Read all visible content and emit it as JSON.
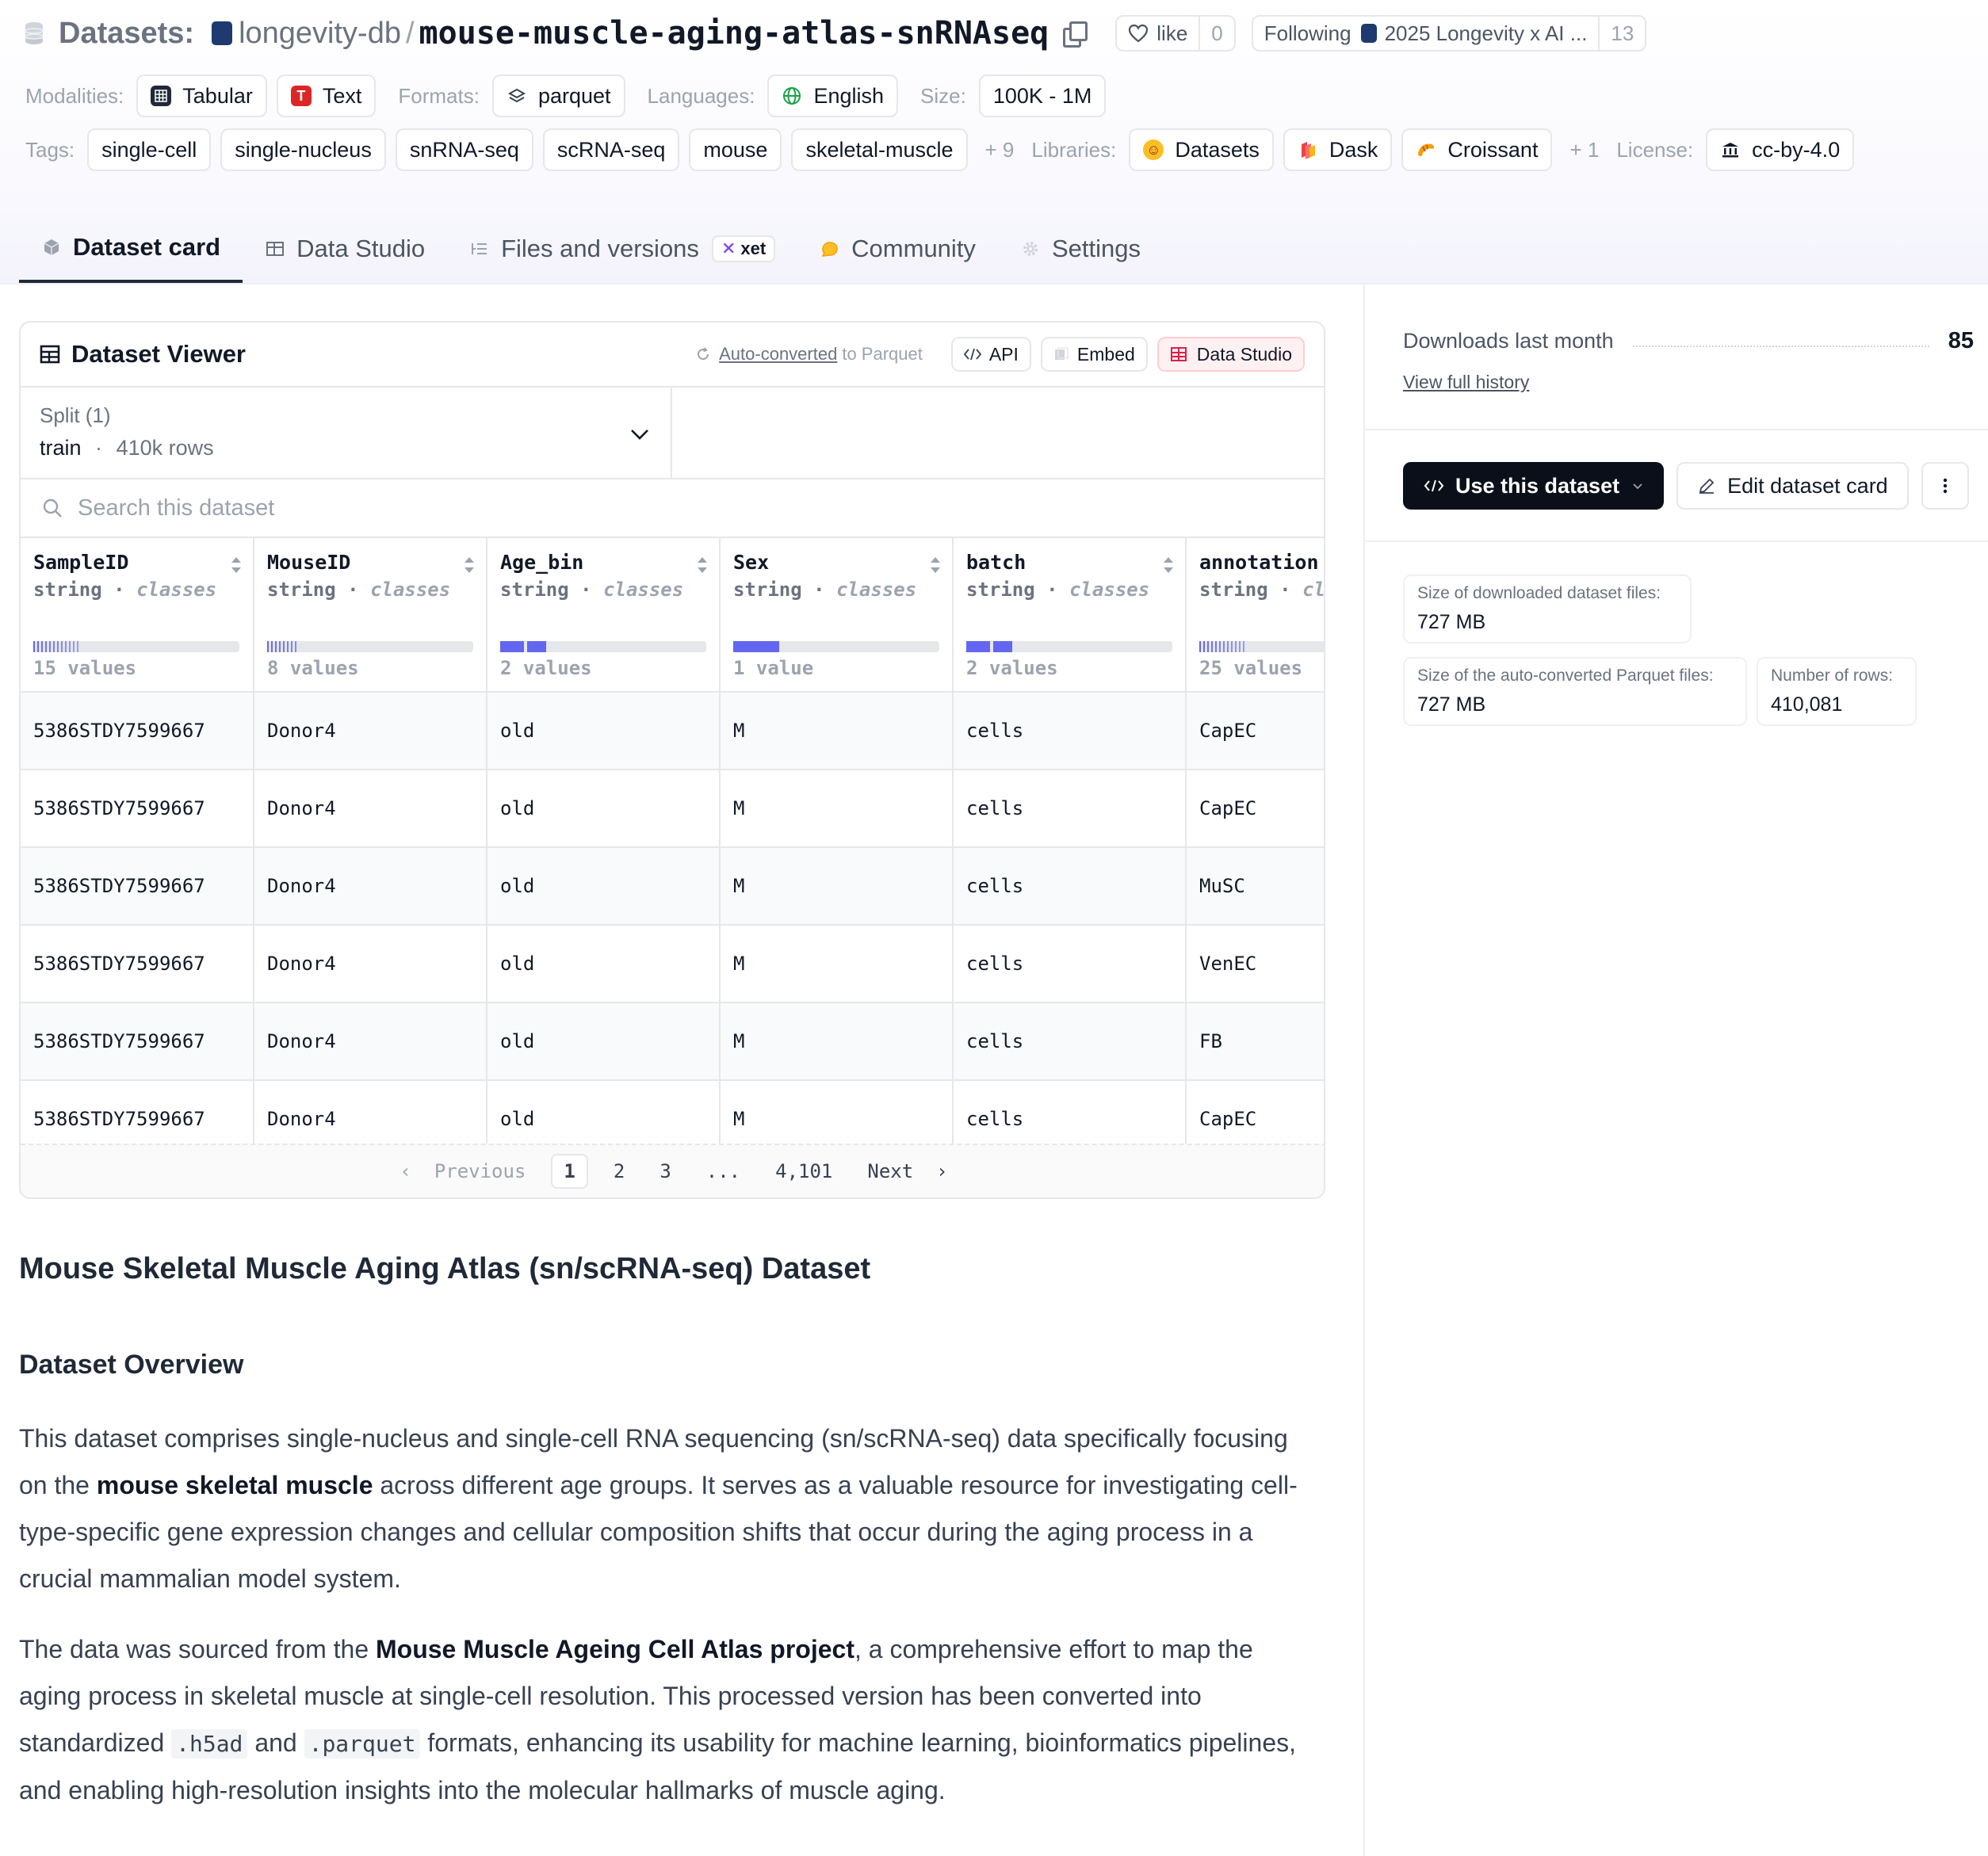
{
  "header": {
    "section_label": "Datasets:",
    "org": "longevity-db",
    "slash": "/",
    "repo": "mouse-muscle-aging-atlas-snRNAseq",
    "like_label": "like",
    "like_count": "0",
    "following_label": "Following",
    "following_name": "2025 Longevity x AI ...",
    "following_count": "13"
  },
  "meta": {
    "modalities_key": "Modalities:",
    "modalities": [
      "Tabular",
      "Text"
    ],
    "formats_key": "Formats:",
    "formats": [
      "parquet"
    ],
    "languages_key": "Languages:",
    "languages": [
      "English"
    ],
    "size_key": "Size:",
    "size": "100K - 1M",
    "tags_key": "Tags:",
    "tags": [
      "single-cell",
      "single-nucleus",
      "snRNA-seq",
      "scRNA-seq",
      "mouse",
      "skeletal-muscle"
    ],
    "tags_more": "+ 9",
    "libraries_key": "Libraries:",
    "libraries": [
      "Datasets",
      "Dask",
      "Croissant"
    ],
    "libraries_more": "+ 1",
    "license_key": "License:",
    "license": "cc-by-4.0"
  },
  "tabs": [
    {
      "label": "Dataset card",
      "active": true
    },
    {
      "label": "Data Studio"
    },
    {
      "label": "Files and versions",
      "badge": "xet"
    },
    {
      "label": "Community"
    },
    {
      "label": "Settings"
    }
  ],
  "viewer": {
    "title": "Dataset Viewer",
    "auto_converted_link": "Auto-converted",
    "auto_converted_rest": "to Parquet",
    "api_label": "API",
    "embed_label": "Embed",
    "studio_label": "Data Studio",
    "split_label": "Split (1)",
    "split_value": "train",
    "split_dot": "·",
    "split_rows": "410k rows",
    "search_placeholder": "Search this dataset",
    "columns": [
      {
        "name": "SampleID",
        "type": "string",
        "kind": "classes",
        "values": "15 values",
        "distribution": "stripes"
      },
      {
        "name": "MouseID",
        "type": "string",
        "kind": "classes",
        "values": "8 values",
        "distribution": "stripes"
      },
      {
        "name": "Age_bin",
        "type": "string",
        "kind": "classes",
        "values": "2 values",
        "distribution": "two"
      },
      {
        "name": "Sex",
        "type": "string",
        "kind": "classes",
        "values": "1 value",
        "distribution": "one"
      },
      {
        "name": "batch",
        "type": "string",
        "kind": "classes",
        "values": "2 values",
        "distribution": "two"
      },
      {
        "name": "annotation",
        "type": "string",
        "kind": "classes",
        "values": "25 values",
        "distribution": "stripes"
      }
    ],
    "rows": [
      [
        "5386STDY7599667",
        "Donor4",
        "old",
        "M",
        "cells",
        "CapEC"
      ],
      [
        "5386STDY7599667",
        "Donor4",
        "old",
        "M",
        "cells",
        "CapEC"
      ],
      [
        "5386STDY7599667",
        "Donor4",
        "old",
        "M",
        "cells",
        "MuSC"
      ],
      [
        "5386STDY7599667",
        "Donor4",
        "old",
        "M",
        "cells",
        "VenEC"
      ],
      [
        "5386STDY7599667",
        "Donor4",
        "old",
        "M",
        "cells",
        "FB"
      ],
      [
        "5386STDY7599667",
        "Donor4",
        "old",
        "M",
        "cells",
        "CapEC"
      ]
    ],
    "pager": {
      "previous": "Previous",
      "pages": [
        "1",
        "2",
        "3"
      ],
      "ellipsis": "...",
      "last": "4,101",
      "next": "Next",
      "current": "1"
    }
  },
  "card": {
    "title": "Mouse Skeletal Muscle Aging Atlas (sn/scRNA-seq) Dataset",
    "overview_heading": "Dataset Overview",
    "p1_a": "This dataset comprises single-nucleus and single-cell RNA sequencing (sn/scRNA-seq) data specifically focusing on the ",
    "p1_b": "mouse skeletal muscle",
    "p1_c": " across different age groups. It serves as a valuable resource for investigating cell-type-specific gene expression changes and cellular composition shifts that occur during the aging process in a crucial mammalian model system.",
    "p2_a": "The data was sourced from the ",
    "p2_b": "Mouse Muscle Ageing Cell Atlas project",
    "p2_c": ", a comprehensive effort to map the aging process in skeletal muscle at single-cell resolution. This processed version has been converted into standardized ",
    "p2_code1": ".h5ad",
    "p2_d": " and ",
    "p2_code2": ".parquet",
    "p2_e": " formats, enhancing its usability for machine learning, bioinformatics pipelines, and enabling high-resolution insights into the molecular hallmarks of muscle aging."
  },
  "sidebar": {
    "downloads_label": "Downloads last month",
    "downloads_value": "85",
    "history_link": "View full history",
    "use_button": "Use this dataset",
    "edit_button": "Edit dataset card",
    "stats": [
      {
        "label": "Size of downloaded dataset files:",
        "value": "727 MB"
      },
      {
        "label": "Size of the auto-converted Parquet files:",
        "value": "727 MB"
      },
      {
        "label": "Number of rows:",
        "value": "410,081"
      }
    ]
  },
  "colors": {
    "accent": "#6366f1",
    "dark_button": "#0b0f19",
    "studio_red": "#e11d48"
  }
}
